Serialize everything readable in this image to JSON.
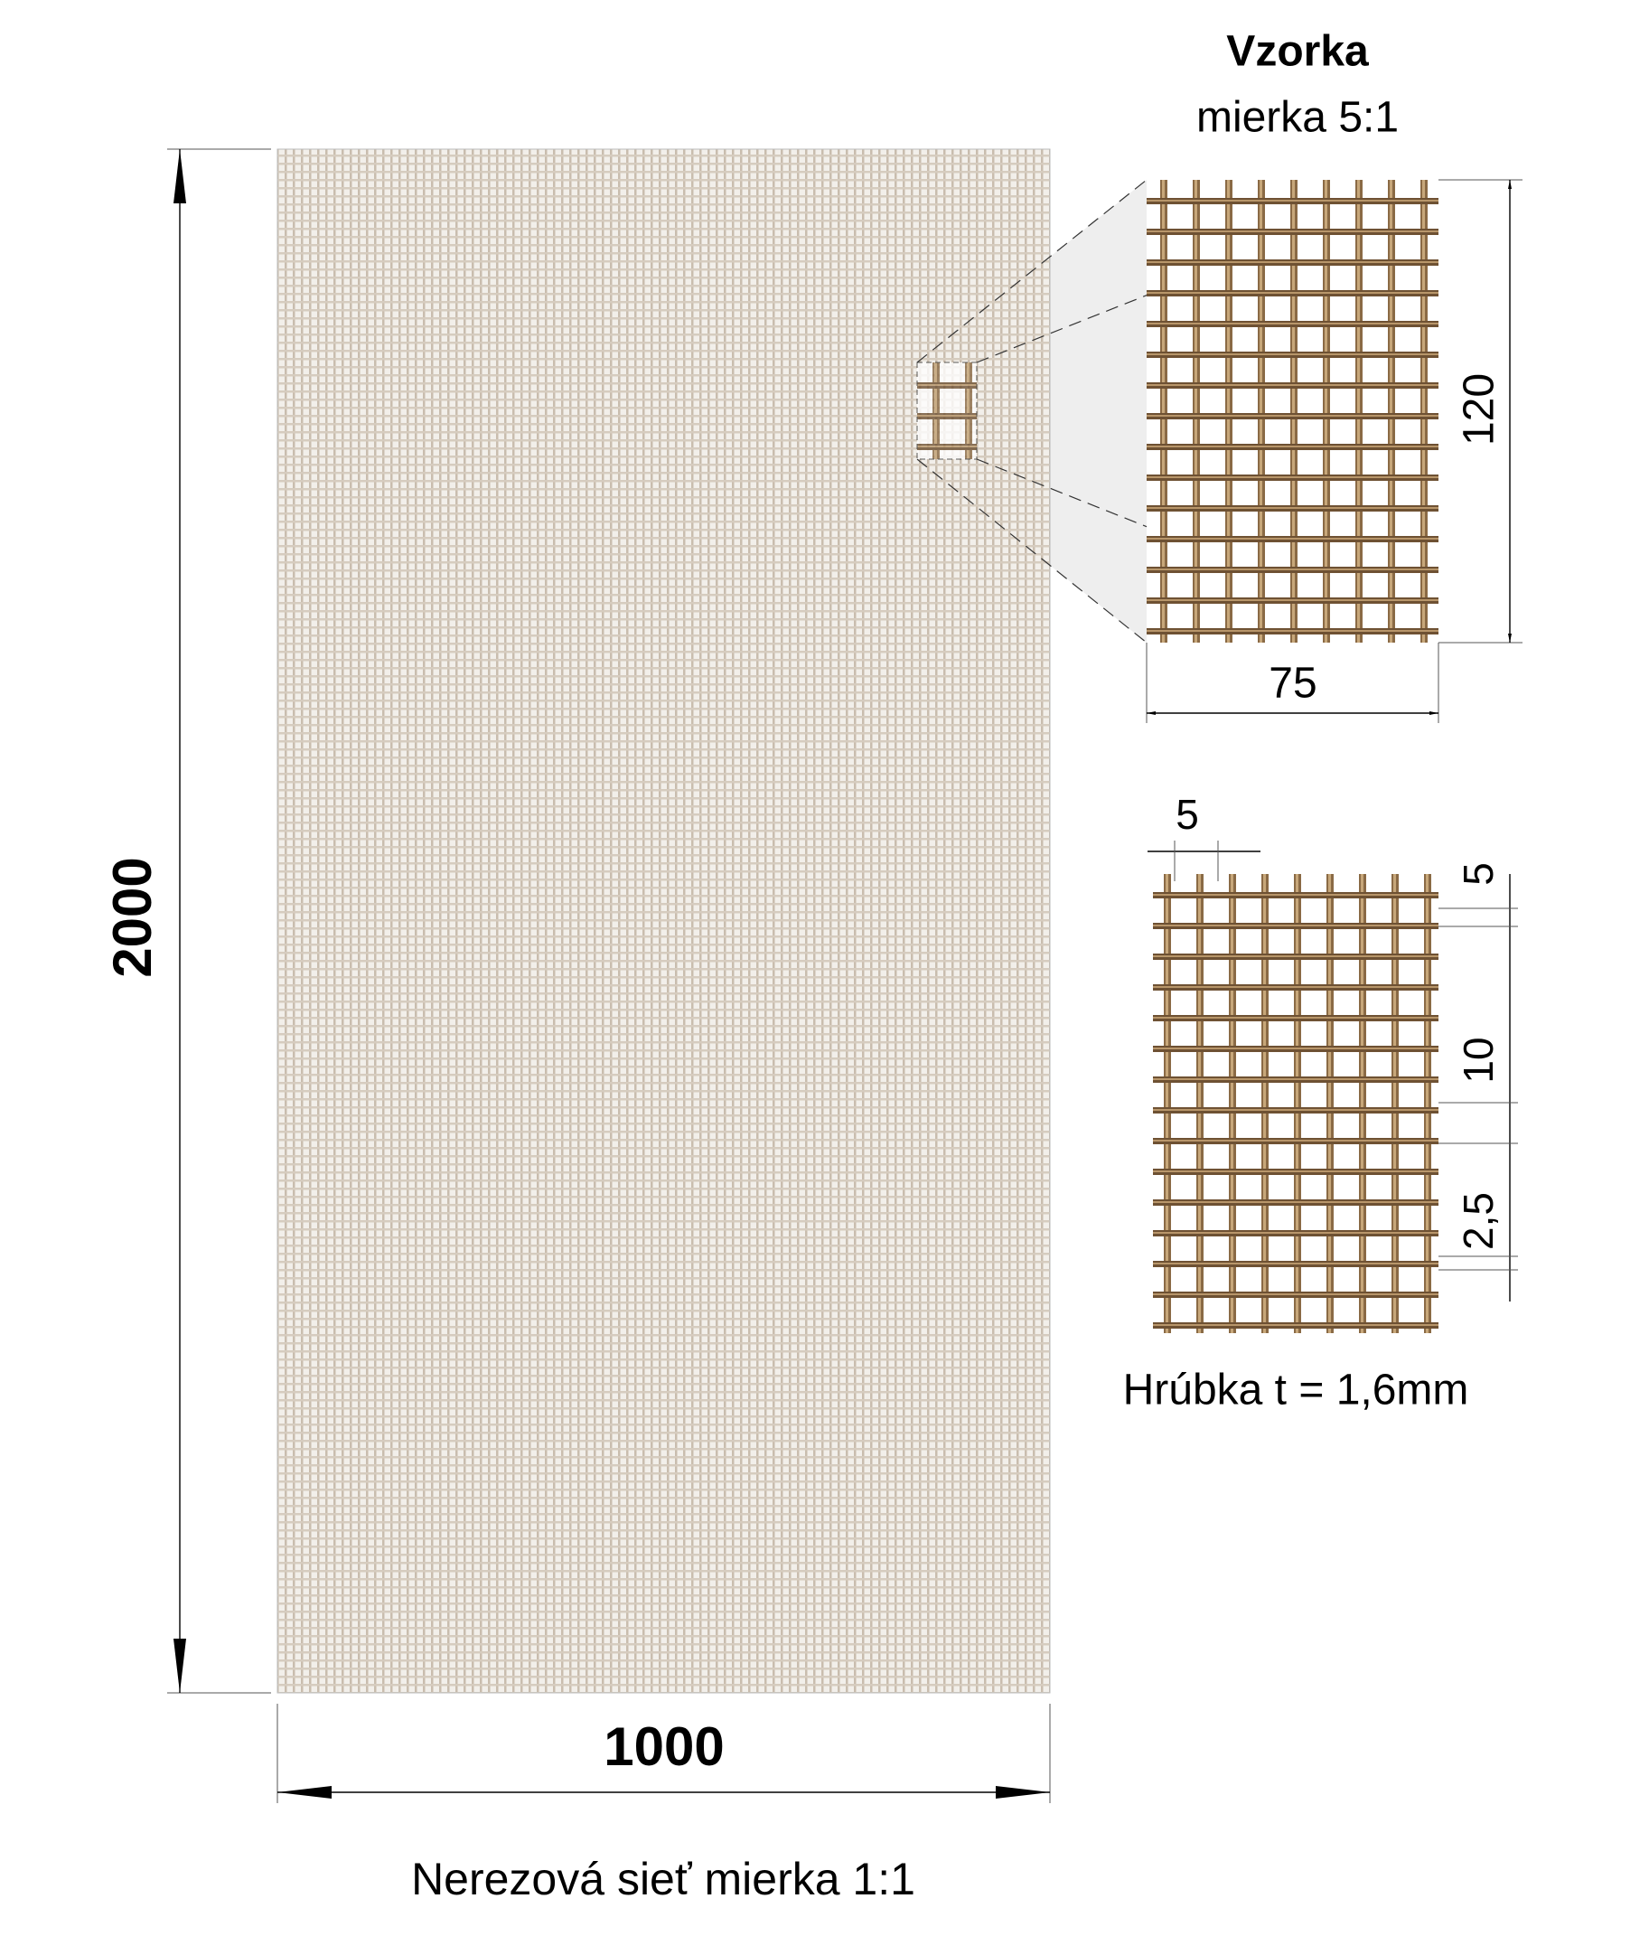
{
  "title": "Vzorka",
  "scale_note": "mierka 5:1",
  "panel": {
    "height": "2000",
    "width": "1000",
    "caption": "Nerezová sieť mierka 1:1"
  },
  "sample": {
    "height": "120",
    "width": "75"
  },
  "detail": {
    "wire_spacing_x": "5",
    "wire_spacing_top": "5",
    "gap": "10",
    "wire_width": "2,5",
    "thickness": "Hrúbka t = 1,6mm"
  }
}
